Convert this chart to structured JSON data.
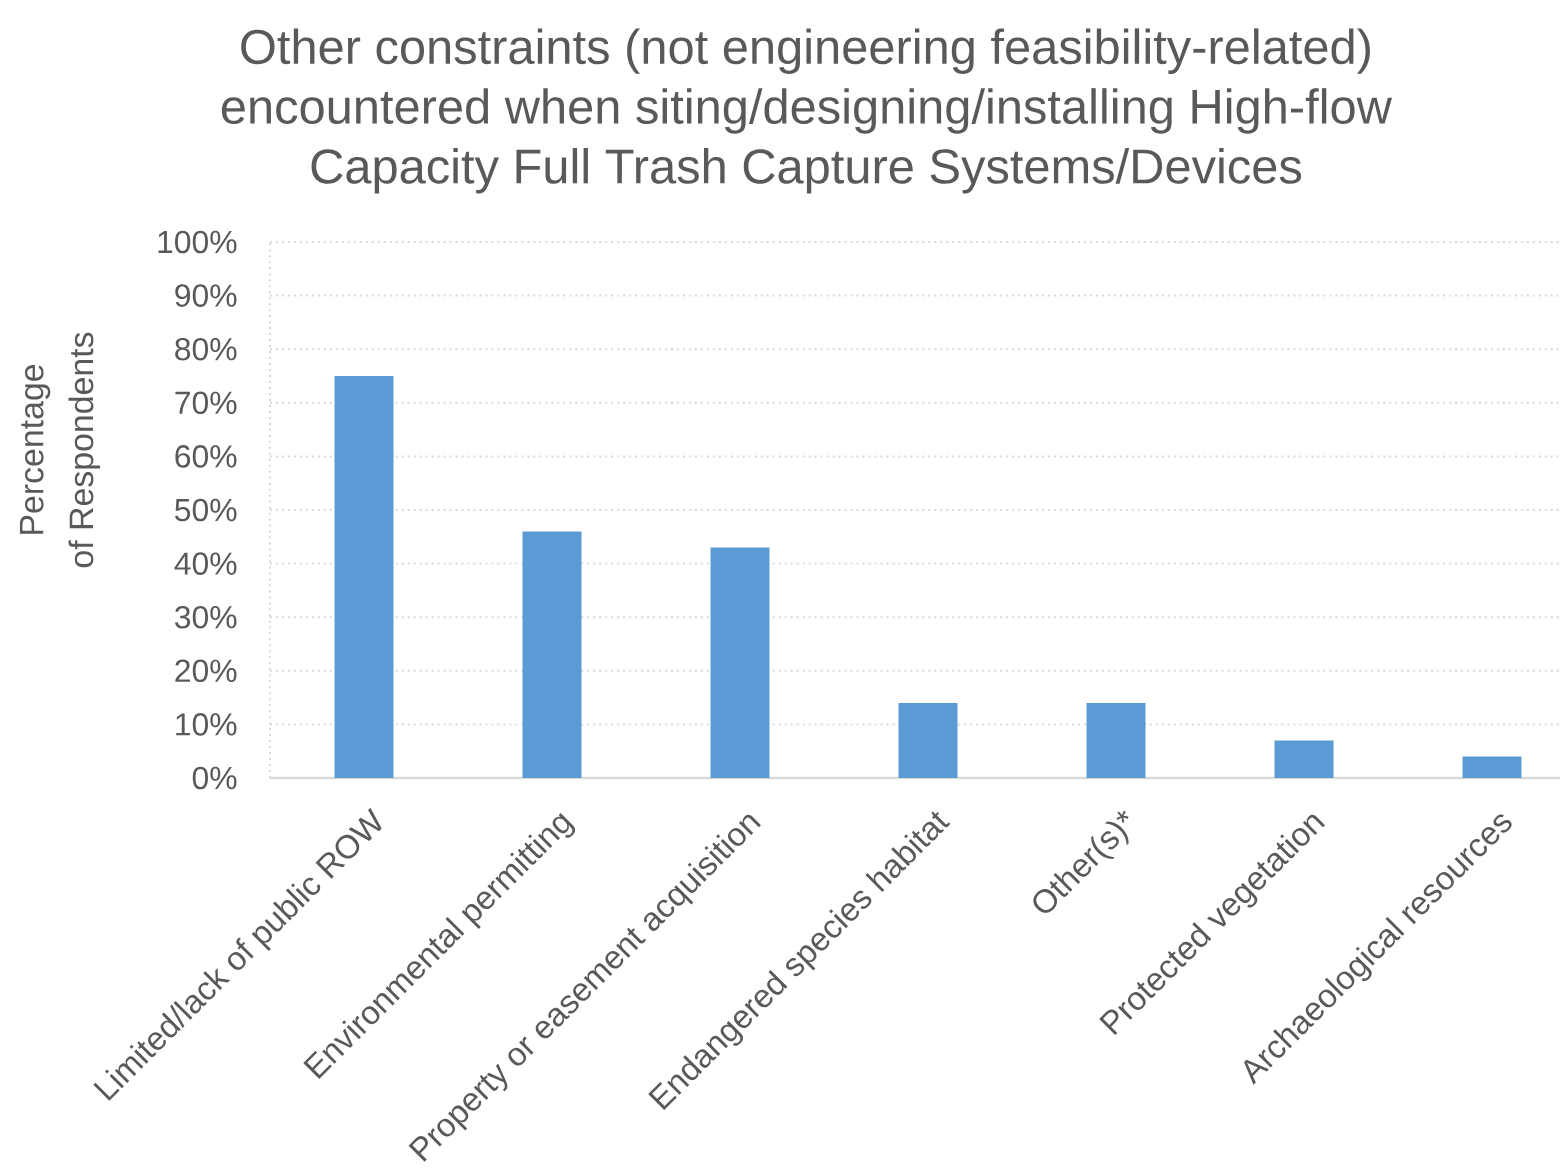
{
  "chart_data": {
    "type": "bar",
    "title": "Other constraints (not engineering feasibility-related) encountered when siting/designing/installing High-flow Capacity Full Trash Capture Systems/Devices",
    "ylabel": "Percentage of Respondents",
    "categories": [
      "Limited/lack of public ROW",
      "Environmental permitting",
      "Property or easement acquisition",
      "Endangered species habitat",
      "Other(s)*",
      "Protected vegetation",
      "Archaeological resources"
    ],
    "values": [
      75,
      46,
      43,
      14,
      14,
      7,
      4
    ],
    "color": "#5b9bd5",
    "ylim": [
      0,
      100
    ],
    "yticks": [
      {
        "value": 0,
        "label": "0%"
      },
      {
        "value": 10,
        "label": "10%"
      },
      {
        "value": 20,
        "label": "20%"
      },
      {
        "value": 30,
        "label": "30%"
      },
      {
        "value": 40,
        "label": "40%"
      },
      {
        "value": 50,
        "label": "50%"
      },
      {
        "value": 60,
        "label": "60%"
      },
      {
        "value": 70,
        "label": "70%"
      },
      {
        "value": 80,
        "label": "80%"
      },
      {
        "value": 90,
        "label": "90%"
      },
      {
        "value": 100,
        "label": "100%"
      }
    ],
    "grid": "y"
  }
}
